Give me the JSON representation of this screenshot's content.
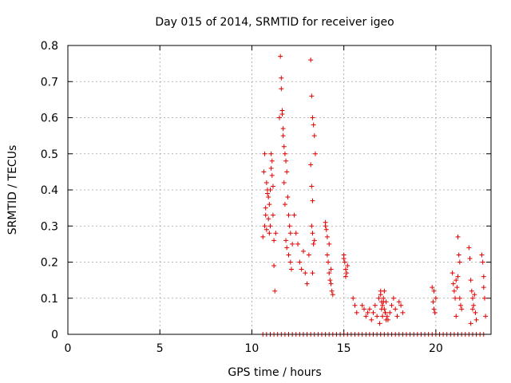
{
  "chart_data": {
    "type": "scatter",
    "title": "Day 015 of 2014, SRMTID for receiver igeo",
    "xlabel": "GPS time / hours",
    "ylabel": "SRMTID / TECUs",
    "xlim": [
      0,
      23
    ],
    "ylim": [
      0,
      0.8
    ],
    "grid": true,
    "marker": "+",
    "marker_color": "#e00000",
    "x_ticks": [
      0,
      5,
      10,
      15,
      20
    ],
    "x_tick_labels": [
      "0",
      "5",
      "10",
      "15",
      "20"
    ],
    "y_ticks": [
      0,
      0.1,
      0.2,
      0.3,
      0.4,
      0.5,
      0.6,
      0.7,
      0.8
    ],
    "y_tick_labels": [
      "0",
      "0.1",
      "0.2",
      "0.3",
      "0.4",
      "0.5",
      "0.6",
      "0.7",
      "0.8"
    ],
    "series": [
      {
        "name": "SRMTID",
        "x": [
          10.6,
          10.65,
          10.7,
          10.75,
          10.8,
          10.85,
          10.9,
          10.95,
          11.0,
          11.05,
          11.1,
          11.15,
          11.2,
          11.25,
          11.3,
          10.7,
          10.75,
          10.8,
          10.85,
          10.9,
          10.95,
          11.0,
          11.05,
          11.1,
          11.15,
          11.2,
          11.5,
          11.55,
          11.6,
          11.65,
          11.7,
          11.75,
          11.8,
          11.85,
          11.9,
          11.95,
          12.0,
          12.05,
          12.1,
          11.6,
          11.65,
          11.7,
          11.75,
          11.8,
          11.85,
          11.9,
          12.0,
          12.1,
          12.15,
          12.2,
          12.3,
          12.4,
          12.5,
          12.6,
          12.7,
          12.8,
          12.9,
          13.0,
          13.1,
          13.2,
          13.25,
          13.3,
          13.35,
          13.4,
          13.45,
          13.2,
          13.25,
          13.3,
          13.35,
          13.25,
          13.3,
          13.3,
          13.4,
          14.0,
          14.05,
          14.1,
          14.15,
          14.2,
          14.25,
          14.3,
          14.35,
          14.4,
          14.0,
          14.1,
          14.2,
          14.3,
          15.0,
          15.05,
          15.1,
          15.15,
          15.2,
          15.0,
          15.1,
          15.5,
          15.6,
          15.7,
          16.0,
          16.1,
          16.2,
          16.3,
          16.4,
          16.5,
          16.6,
          16.7,
          16.8,
          16.9,
          17.0,
          17.05,
          17.1,
          17.15,
          17.2,
          17.25,
          17.3,
          17.35,
          17.4,
          17.5,
          17.6,
          17.7,
          17.8,
          17.9,
          18.0,
          18.1,
          18.2,
          16.95,
          17.0,
          17.05,
          17.1,
          17.15,
          17.2,
          17.25,
          17.3,
          19.8,
          19.85,
          19.9,
          19.95,
          20.0,
          19.9,
          20.9,
          20.95,
          21.0,
          21.05,
          21.1,
          21.15,
          21.2,
          21.25,
          21.3,
          21.35,
          21.4,
          21.1,
          21.2,
          21.3,
          21.8,
          21.85,
          21.9,
          21.95,
          22.0,
          22.05,
          22.1,
          22.15,
          22.2,
          22.5,
          22.55,
          22.6,
          22.65,
          22.7,
          21.9,
          22.0,
          22.6,
          10.6,
          10.8,
          11.0,
          11.2,
          11.4,
          11.6,
          11.8,
          12.0,
          12.2,
          12.4,
          12.6,
          12.8,
          13.0,
          13.2,
          13.4,
          13.6,
          13.8,
          14.0,
          14.2,
          14.4,
          14.6,
          14.8,
          15.0,
          15.2,
          15.4,
          15.6,
          15.8,
          16.0,
          16.2,
          16.4,
          16.6,
          16.8,
          17.0,
          17.2,
          17.4,
          17.6,
          17.8,
          18.0,
          18.2,
          18.4,
          18.6,
          18.8,
          19.0,
          19.2,
          19.4,
          19.6,
          19.8,
          20.0,
          20.2,
          20.4,
          20.6,
          20.8,
          21.0,
          21.2,
          21.4,
          21.6,
          21.8,
          22.0,
          22.2,
          22.4,
          22.6
        ],
        "y": [
          0.27,
          0.45,
          0.5,
          0.33,
          0.29,
          0.4,
          0.38,
          0.36,
          0.3,
          0.5,
          0.48,
          0.41,
          0.19,
          0.12,
          0.28,
          0.3,
          0.35,
          0.42,
          0.39,
          0.32,
          0.28,
          0.4,
          0.46,
          0.44,
          0.33,
          0.26,
          0.6,
          0.77,
          0.71,
          0.62,
          0.55,
          0.52,
          0.5,
          0.48,
          0.45,
          0.38,
          0.33,
          0.3,
          0.28,
          0.68,
          0.61,
          0.57,
          0.42,
          0.36,
          0.26,
          0.24,
          0.22,
          0.2,
          0.18,
          0.25,
          0.33,
          0.28,
          0.25,
          0.2,
          0.18,
          0.23,
          0.17,
          0.14,
          0.22,
          0.76,
          0.66,
          0.6,
          0.58,
          0.55,
          0.5,
          0.47,
          0.41,
          0.37,
          0.25,
          0.3,
          0.28,
          0.17,
          0.26,
          0.3,
          0.29,
          0.22,
          0.2,
          0.17,
          0.15,
          0.14,
          0.12,
          0.11,
          0.31,
          0.27,
          0.25,
          0.18,
          0.21,
          0.2,
          0.18,
          0.17,
          0.19,
          0.22,
          0.16,
          0.1,
          0.08,
          0.06,
          0.08,
          0.07,
          0.05,
          0.06,
          0.07,
          0.04,
          0.06,
          0.08,
          0.05,
          0.1,
          0.12,
          0.09,
          0.08,
          0.1,
          0.07,
          0.06,
          0.09,
          0.05,
          0.04,
          0.06,
          0.08,
          0.1,
          0.07,
          0.05,
          0.09,
          0.08,
          0.06,
          0.03,
          0.11,
          0.07,
          0.05,
          0.09,
          0.12,
          0.06,
          0.04,
          0.13,
          0.09,
          0.07,
          0.06,
          0.1,
          0.12,
          0.17,
          0.14,
          0.12,
          0.1,
          0.15,
          0.13,
          0.27,
          0.22,
          0.2,
          0.08,
          0.07,
          0.05,
          0.16,
          0.1,
          0.24,
          0.21,
          0.15,
          0.12,
          0.1,
          0.08,
          0.11,
          0.06,
          0.04,
          0.22,
          0.2,
          0.13,
          0.1,
          0.05,
          0.03,
          0.07,
          0.16,
          0,
          0,
          0,
          0,
          0,
          0,
          0,
          0,
          0,
          0,
          0,
          0,
          0,
          0,
          0,
          0,
          0,
          0,
          0,
          0,
          0,
          0,
          0,
          0,
          0,
          0,
          0,
          0,
          0,
          0,
          0,
          0,
          0,
          0,
          0,
          0,
          0,
          0,
          0,
          0,
          0,
          0,
          0,
          0,
          0,
          0,
          0,
          0,
          0,
          0,
          0,
          0,
          0,
          0,
          0,
          0,
          0,
          0,
          0,
          0,
          0
        ]
      }
    ]
  }
}
